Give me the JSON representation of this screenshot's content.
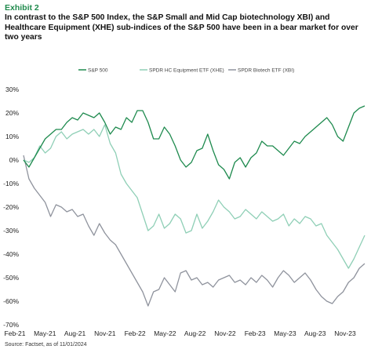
{
  "header": {
    "exhibit": "Exhibit 2",
    "title": "In contrast to the S&P 500 Index, the S&P Small and Mid Cap biotechnology XBI) and Healthcare Equipment (XHE) sub-indices of the S&P 500 have been in a bear market for over two years"
  },
  "source": "Source: Factset, as of 11/01/2024",
  "chart_data": {
    "type": "line",
    "title": "",
    "xlabel": "",
    "ylabel": "",
    "ylim": [
      -70,
      30
    ],
    "y_ticks": [
      30,
      20,
      10,
      0,
      -10,
      -20,
      -30,
      -40,
      -50,
      -60,
      -70
    ],
    "y_tick_labels": [
      "30%",
      "20%",
      "10%",
      "0%",
      "-10%",
      "-20%",
      "-30%",
      "-40%",
      "-50%",
      "-60%",
      "-70%"
    ],
    "x_tick_labels": [
      "Feb-21",
      "May-21",
      "Aug-21",
      "Nov-21",
      "Feb-22",
      "May-22",
      "Aug-22",
      "Nov-22",
      "Feb-23",
      "May-23",
      "Aug-23",
      "Nov-23"
    ],
    "grid": false,
    "legend_position": "top",
    "series": [
      {
        "name": "S&P 500",
        "color": "#1e8a4e",
        "values": [
          0,
          -3,
          1,
          5,
          9,
          11,
          13,
          13,
          16,
          18,
          17,
          20,
          19,
          18,
          20,
          16,
          11,
          14,
          13,
          18,
          16,
          21,
          21,
          16,
          9,
          9,
          14,
          11,
          6,
          0,
          -3,
          -1,
          4,
          5,
          11,
          4,
          -2,
          -4,
          -8,
          -1,
          1,
          -3,
          1,
          3,
          8,
          6,
          6,
          4,
          2,
          5,
          8,
          7,
          10,
          12,
          14,
          16,
          18,
          15,
          10,
          8,
          14,
          20,
          22,
          23
        ]
      },
      {
        "name": "SPDR HC Equipment ETF (XHE)",
        "color": "#8fcfb6",
        "values": [
          0,
          -1,
          1,
          6,
          3,
          5,
          10,
          12,
          9,
          11,
          12,
          13,
          11,
          13,
          10,
          15,
          7,
          3,
          -6,
          -10,
          -13,
          -16,
          -23,
          -30,
          -28,
          -23,
          -29,
          -27,
          -23,
          -25,
          -31,
          -30,
          -23,
          -29,
          -26,
          -22,
          -17,
          -20,
          -22,
          -25,
          -24,
          -21,
          -23,
          -25,
          -22,
          -24,
          -26,
          -25,
          -23,
          -28,
          -25,
          -27,
          -24,
          -25,
          -28,
          -27,
          -32,
          -35,
          -38,
          -42,
          -46,
          -42,
          -37,
          -32
        ]
      },
      {
        "name": "SPDR Biotech ETF (XBI)",
        "color": "#8f939d",
        "values": [
          2,
          -8,
          -12,
          -15,
          -18,
          -24,
          -19,
          -20,
          -22,
          -21,
          -24,
          -23,
          -28,
          -32,
          -27,
          -31,
          -34,
          -36,
          -40,
          -44,
          -48,
          -52,
          -56,
          -62,
          -56,
          -55,
          -50,
          -53,
          -56,
          -48,
          -47,
          -51,
          -50,
          -53,
          -52,
          -54,
          -51,
          -50,
          -49,
          -52,
          -51,
          -53,
          -50,
          -52,
          -49,
          -51,
          -54,
          -50,
          -47,
          -49,
          -52,
          -50,
          -48,
          -51,
          -55,
          -58,
          -60,
          -61,
          -58,
          -56,
          -52,
          -50,
          -46,
          -44
        ]
      }
    ]
  }
}
